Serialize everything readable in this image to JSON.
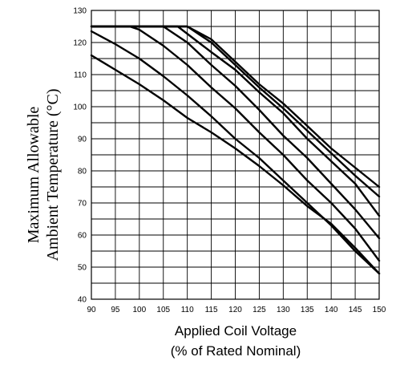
{
  "chart_data": {
    "type": "line",
    "title": "",
    "ylabel_lines": [
      "Maximum Allowable",
      "Ambient Temperature (°C)"
    ],
    "xlabel_lines": [
      "Applied Coil Voltage",
      "(% of Rated Nominal)"
    ],
    "xlim": [
      90,
      150
    ],
    "ylim": [
      40,
      130
    ],
    "x_ticks": [
      90,
      95,
      100,
      105,
      110,
      115,
      120,
      125,
      130,
      135,
      140,
      145,
      150
    ],
    "y_ticks": [
      40,
      50,
      60,
      70,
      80,
      90,
      100,
      110,
      120,
      130
    ],
    "x_minor_step": 5,
    "y_minor_step": 5,
    "grid": true,
    "legend": "none",
    "series": [
      {
        "points": [
          [
            90,
            125
          ],
          [
            110,
            125
          ],
          [
            115,
            120
          ],
          [
            120,
            113
          ],
          [
            125,
            106
          ],
          [
            130,
            99.5
          ],
          [
            135,
            92.5
          ],
          [
            140,
            85.5
          ],
          [
            145,
            78.5
          ],
          [
            150,
            72
          ]
        ]
      },
      {
        "points": [
          [
            90,
            125
          ],
          [
            108,
            125
          ],
          [
            115,
            117
          ],
          [
            120,
            111.5
          ],
          [
            125,
            104.5
          ],
          [
            130,
            98
          ],
          [
            135,
            90
          ],
          [
            140,
            83
          ],
          [
            145,
            76
          ],
          [
            150,
            66
          ]
        ]
      },
      {
        "points": [
          [
            90,
            125
          ],
          [
            105,
            125
          ],
          [
            110,
            120
          ],
          [
            115,
            113
          ],
          [
            120,
            106.5
          ],
          [
            125,
            99
          ],
          [
            130,
            91
          ],
          [
            135,
            84
          ],
          [
            140,
            76
          ],
          [
            145,
            68
          ],
          [
            150,
            59
          ]
        ]
      },
      {
        "points": [
          [
            90,
            125
          ],
          [
            98,
            125
          ],
          [
            100,
            124
          ],
          [
            105,
            119
          ],
          [
            110,
            113
          ],
          [
            115,
            106
          ],
          [
            120,
            99.5
          ],
          [
            125,
            92
          ],
          [
            130,
            85
          ],
          [
            135,
            77
          ],
          [
            140,
            70
          ],
          [
            145,
            62
          ],
          [
            150,
            52
          ]
        ]
      },
      {
        "points": [
          [
            90,
            123.5
          ],
          [
            95,
            119.5
          ],
          [
            100,
            115
          ],
          [
            105,
            109.5
          ],
          [
            110,
            103.5
          ],
          [
            115,
            97
          ],
          [
            120,
            90
          ],
          [
            125,
            84
          ],
          [
            130,
            77
          ],
          [
            135,
            70
          ],
          [
            140,
            63
          ],
          [
            145,
            55
          ],
          [
            150,
            48
          ]
        ]
      },
      {
        "points": [
          [
            90,
            116
          ],
          [
            95,
            111.5
          ],
          [
            100,
            107
          ],
          [
            105,
            102
          ],
          [
            110,
            96.5
          ],
          [
            115,
            92
          ],
          [
            120,
            87
          ],
          [
            125,
            81.5
          ],
          [
            130,
            75.5
          ],
          [
            135,
            69
          ],
          [
            140,
            63.5
          ],
          [
            145,
            56
          ],
          [
            150,
            48
          ]
        ]
      },
      {
        "points": [
          [
            90,
            125
          ],
          [
            110,
            125
          ],
          [
            115,
            121
          ],
          [
            120,
            114
          ],
          [
            125,
            107
          ],
          [
            130,
            101
          ],
          [
            135,
            94
          ],
          [
            140,
            87
          ],
          [
            145,
            81
          ],
          [
            150,
            75
          ]
        ]
      }
    ]
  }
}
